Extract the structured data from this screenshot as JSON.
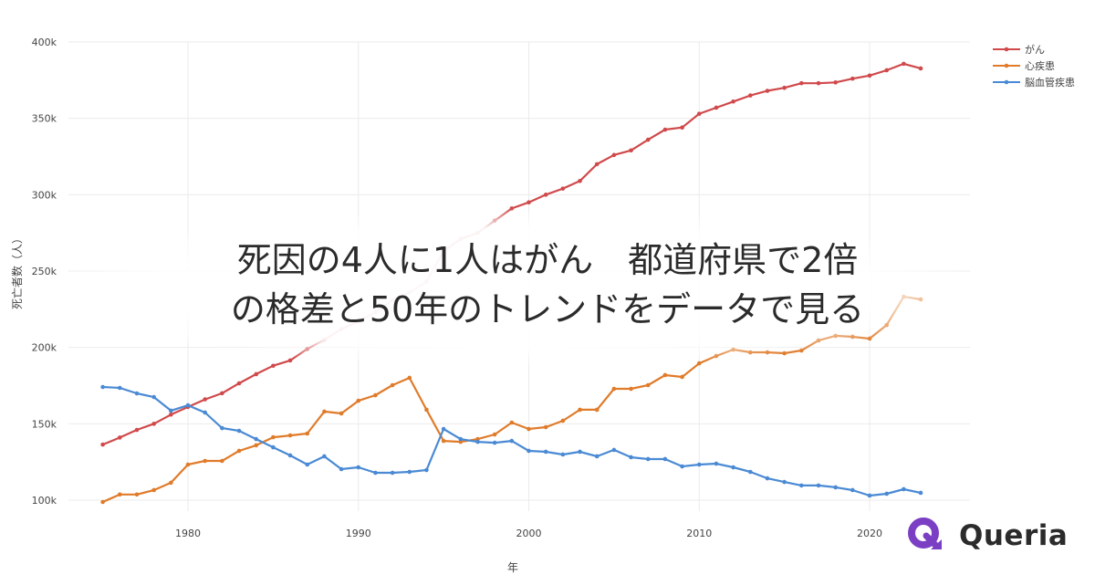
{
  "headline": {
    "line1": "死因の4人に1人はがん　都道府県で2倍",
    "line2": "の格差と50年のトレンドをデータで見る"
  },
  "brand": {
    "name": "Queria",
    "icon": "queria-q-logo-icon",
    "color": "#7b3fc4"
  },
  "chart_data": {
    "type": "line",
    "title": "",
    "xlabel": "年",
    "ylabel": "死亡者数（人）",
    "xlim": [
      1973.5,
      2026.5
    ],
    "ylim": [
      100000,
      400000
    ],
    "x_ticks": [
      1980,
      1990,
      2000,
      2010,
      2020
    ],
    "y_ticks": [
      100000,
      150000,
      200000,
      250000,
      300000,
      350000,
      400000
    ],
    "y_tick_labels": [
      "100k",
      "150k",
      "200k",
      "250k",
      "300k",
      "350k",
      "400k"
    ],
    "grid": true,
    "legend_position": "top-right",
    "x": [
      1975,
      1976,
      1977,
      1978,
      1979,
      1980,
      1981,
      1982,
      1983,
      1984,
      1985,
      1986,
      1987,
      1988,
      1989,
      1990,
      1991,
      1992,
      1993,
      1994,
      1995,
      1996,
      1997,
      1998,
      1999,
      2000,
      2001,
      2002,
      2003,
      2004,
      2005,
      2006,
      2007,
      2008,
      2009,
      2010,
      2011,
      2012,
      2013,
      2014,
      2015,
      2016,
      2017,
      2018,
      2019,
      2020,
      2021,
      2022,
      2023
    ],
    "series": [
      {
        "name": "がん",
        "color": "#d0494b",
        "values": [
          136400,
          141000,
          146000,
          150000,
          156000,
          161000,
          166000,
          170000,
          176500,
          182500,
          188000,
          191500,
          199000,
          205000,
          212000,
          217000,
          223000,
          231000,
          236000,
          243000,
          263000,
          271000,
          275000,
          283000,
          291000,
          295000,
          300000,
          304000,
          309000,
          320000,
          326000,
          329000,
          336000,
          342600,
          344000,
          353000,
          357000,
          361000,
          365000,
          368000,
          370000,
          373000,
          373000,
          373500,
          376000,
          378000,
          381500,
          385700,
          382700
        ]
      },
      {
        "name": "心疾患",
        "color": "#e07b2a",
        "values": [
          98800,
          103700,
          103700,
          106600,
          111400,
          123300,
          125700,
          125700,
          132300,
          135900,
          141200,
          142400,
          143600,
          158000,
          156800,
          165100,
          168700,
          175300,
          180100,
          159200,
          138800,
          138200,
          140000,
          143000,
          150800,
          146600,
          147800,
          152000,
          159200,
          159200,
          172900,
          172900,
          175300,
          181900,
          180700,
          189600,
          194400,
          198600,
          196800,
          196800,
          196200,
          198000,
          204600,
          207600,
          207000,
          205800,
          214700,
          233200,
          231500
        ]
      },
      {
        "name": "脳血管疾患",
        "color": "#4a8ad4",
        "values": [
          174100,
          173500,
          169900,
          167500,
          158600,
          162100,
          157400,
          147200,
          145400,
          140000,
          134600,
          129300,
          123300,
          128700,
          120300,
          121500,
          117900,
          117900,
          118500,
          119700,
          146600,
          140000,
          138200,
          137600,
          138800,
          132300,
          131700,
          129900,
          131700,
          128700,
          132900,
          128100,
          126900,
          126900,
          122100,
          123300,
          123900,
          121500,
          118500,
          114300,
          111900,
          109600,
          109600,
          108400,
          106600,
          103000,
          104200,
          107200,
          104800
        ]
      }
    ]
  }
}
